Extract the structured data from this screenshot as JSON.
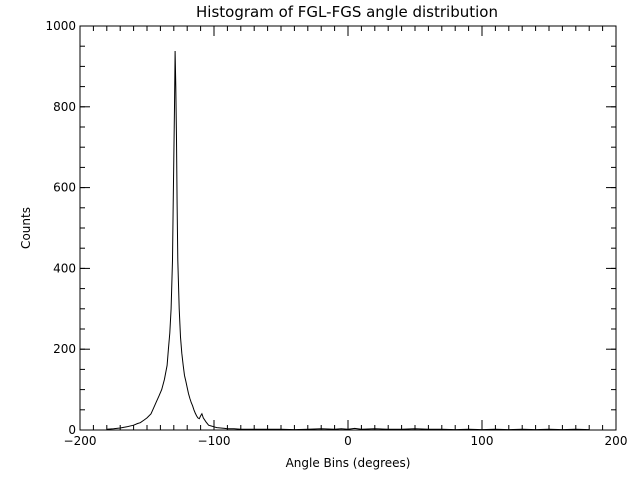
{
  "colors": {
    "background": "#ffffff",
    "ink": "#000000"
  },
  "chart_data": {
    "type": "line",
    "title": "Histogram of FGL-FGS angle distribution",
    "xlabel": "Angle Bins (degrees)",
    "ylabel": "Counts",
    "xlim": [
      -200,
      200
    ],
    "ylim": [
      0,
      1000
    ],
    "x_major_ticks": [
      -200,
      -100,
      0,
      100,
      200
    ],
    "x_tick_labels": [
      "−200",
      "−100",
      "0",
      "100",
      "200"
    ],
    "x_minor_step": 10,
    "y_major_ticks": [
      0,
      200,
      400,
      600,
      800,
      1000
    ],
    "y_tick_labels": [
      "0",
      "200",
      "400",
      "600",
      "800",
      "1000"
    ],
    "y_minor_step": 50,
    "grid": false,
    "legend": "none",
    "series": [
      {
        "x": [
          -180,
          -175,
          -170,
          -165,
          -160,
          -157,
          -155,
          -152,
          -150,
          -147,
          -145,
          -143,
          -141,
          -139,
          -137,
          -135,
          -134,
          -133,
          -132,
          -131,
          -130.5,
          -130,
          -129.5,
          -129,
          -128.5,
          -128,
          -127.5,
          -127,
          -126,
          -125,
          -124,
          -123,
          -122,
          -121,
          -120,
          -119,
          -118,
          -117,
          -116,
          -115,
          -114,
          -113,
          -112,
          -111,
          -110,
          -109,
          -108,
          -106,
          -104,
          -102,
          -100,
          -98,
          -95,
          -92,
          -90,
          -85,
          -80,
          -75,
          -70,
          -60,
          -50,
          -40,
          -30,
          -20,
          -10,
          -5,
          0,
          5,
          10,
          20,
          30,
          40,
          50,
          60,
          70,
          80,
          90,
          100,
          110,
          120,
          130,
          140,
          150,
          160,
          170,
          180
        ],
        "y": [
          2,
          3,
          5,
          8,
          12,
          16,
          18,
          25,
          30,
          40,
          55,
          70,
          85,
          100,
          125,
          160,
          200,
          240,
          300,
          420,
          540,
          670,
          800,
          938,
          850,
          720,
          560,
          420,
          300,
          230,
          190,
          160,
          135,
          120,
          105,
          90,
          78,
          68,
          60,
          50,
          42,
          35,
          30,
          28,
          35,
          40,
          30,
          20,
          12,
          10,
          8,
          6,
          5,
          4,
          3,
          3,
          2,
          2,
          2,
          2,
          2,
          1,
          2,
          3,
          2,
          3,
          2,
          4,
          2,
          3,
          2,
          2,
          3,
          2,
          2,
          1,
          2,
          1,
          2,
          1,
          2,
          1,
          2,
          1,
          2,
          1
        ]
      }
    ]
  }
}
